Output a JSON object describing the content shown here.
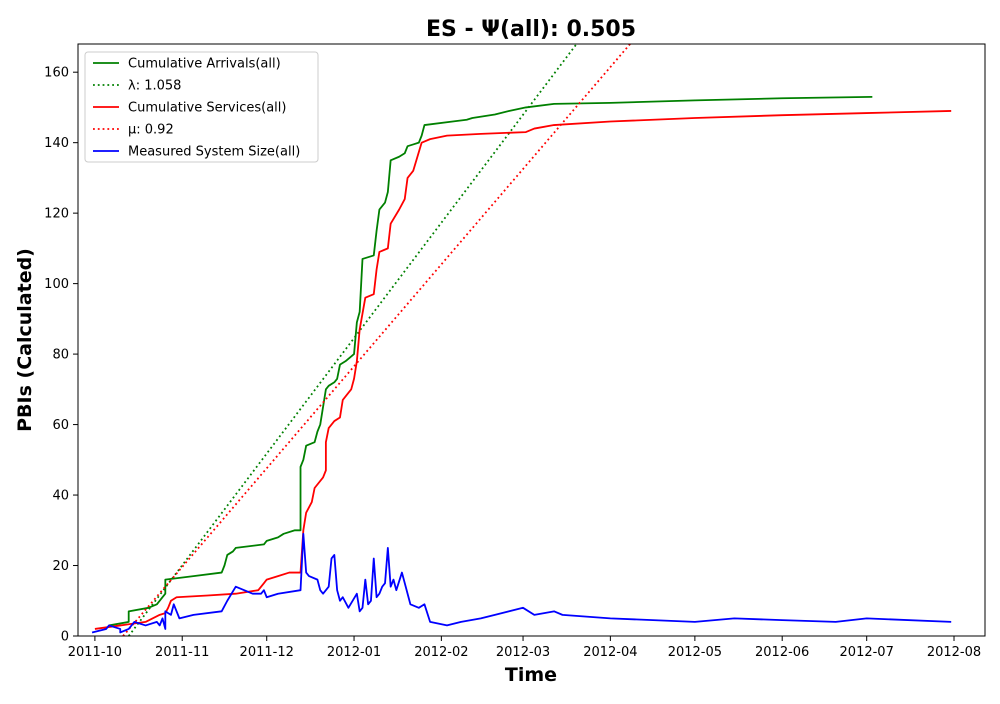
{
  "chart_data": {
    "type": "line",
    "title": "ES -  Ψ(all): 0.505",
    "xlabel": "Time",
    "ylabel": "PBIs (Calculated)",
    "xlim": [
      "2011-09-25",
      "2012-08-12"
    ],
    "ylim": [
      0,
      168
    ],
    "x_ticks": [
      "2011-10",
      "2011-11",
      "2011-12",
      "2012-01",
      "2012-02",
      "2012-03",
      "2012-04",
      "2012-05",
      "2012-06",
      "2012-07",
      "2012-08"
    ],
    "x_tick_dates": [
      "2011-10-01",
      "2011-11-01",
      "2011-12-01",
      "2012-01-01",
      "2012-02-01",
      "2012-03-01",
      "2012-04-01",
      "2012-05-01",
      "2012-06-01",
      "2012-07-01",
      "2012-08-01"
    ],
    "y_ticks": [
      0,
      20,
      40,
      60,
      80,
      100,
      120,
      140,
      160
    ],
    "grid": false,
    "legend_position": "top-left",
    "series": [
      {
        "name": "Cumulative Arrivals(all)",
        "color": "#008000",
        "style": "solid",
        "points": [
          [
            "2011-10-06",
            3
          ],
          [
            "2011-10-13",
            4
          ],
          [
            "2011-10-13",
            7
          ],
          [
            "2011-10-20",
            8
          ],
          [
            "2011-10-23",
            9
          ],
          [
            "2011-10-25",
            11
          ],
          [
            "2011-10-26",
            12
          ],
          [
            "2011-10-26",
            16
          ],
          [
            "2011-10-31",
            16.5
          ],
          [
            "2011-11-05",
            17
          ],
          [
            "2011-11-15",
            18
          ],
          [
            "2011-11-16",
            20
          ],
          [
            "2011-11-17",
            23
          ],
          [
            "2011-11-19",
            24
          ],
          [
            "2011-11-20",
            25
          ],
          [
            "2011-11-30",
            26
          ],
          [
            "2011-12-01",
            27
          ],
          [
            "2011-12-05",
            28
          ],
          [
            "2011-12-07",
            29
          ],
          [
            "2011-12-11",
            30
          ],
          [
            "2011-12-13",
            30
          ],
          [
            "2011-12-13",
            48
          ],
          [
            "2011-12-14",
            50
          ],
          [
            "2011-12-15",
            54
          ],
          [
            "2011-12-18",
            55
          ],
          [
            "2011-12-19",
            58
          ],
          [
            "2011-12-20",
            60
          ],
          [
            "2011-12-21",
            65
          ],
          [
            "2011-12-22",
            70
          ],
          [
            "2011-12-23",
            71
          ],
          [
            "2011-12-25",
            72
          ],
          [
            "2011-12-26",
            73
          ],
          [
            "2011-12-27",
            77
          ],
          [
            "2011-12-29",
            78
          ],
          [
            "2012-01-01",
            80
          ],
          [
            "2012-01-02",
            89
          ],
          [
            "2012-01-03",
            92
          ],
          [
            "2012-01-04",
            107
          ],
          [
            "2012-01-08",
            108
          ],
          [
            "2012-01-09",
            115
          ],
          [
            "2012-01-10",
            121
          ],
          [
            "2012-01-11",
            122
          ],
          [
            "2012-01-12",
            123
          ],
          [
            "2012-01-13",
            126
          ],
          [
            "2012-01-14",
            135
          ],
          [
            "2012-01-17",
            136
          ],
          [
            "2012-01-19",
            137
          ],
          [
            "2012-01-20",
            139
          ],
          [
            "2012-01-22",
            139.5
          ],
          [
            "2012-01-24",
            140
          ],
          [
            "2012-01-25",
            142
          ],
          [
            "2012-01-26",
            145
          ],
          [
            "2012-02-05",
            146
          ],
          [
            "2012-02-10",
            146.5
          ],
          [
            "2012-02-12",
            147
          ],
          [
            "2012-02-20",
            148
          ],
          [
            "2012-02-25",
            149
          ],
          [
            "2012-03-02",
            150
          ],
          [
            "2012-03-12",
            151
          ],
          [
            "2012-04-01",
            151.3
          ],
          [
            "2012-05-01",
            152
          ],
          [
            "2012-06-01",
            152.6
          ],
          [
            "2012-07-03",
            153
          ]
        ]
      },
      {
        "name": "λ: 1.058",
        "color": "#008000",
        "style": "dotted",
        "points": [
          [
            "2011-10-13",
            0
          ],
          [
            "2012-03-20",
            168
          ]
        ]
      },
      {
        "name": "Cumulative Services(all)",
        "color": "#ff0000",
        "style": "solid",
        "points": [
          [
            "2011-10-01",
            2
          ],
          [
            "2011-10-10",
            3
          ],
          [
            "2011-10-19",
            4
          ],
          [
            "2011-10-24",
            6
          ],
          [
            "2011-10-26",
            6.5
          ],
          [
            "2011-10-27",
            8
          ],
          [
            "2011-10-28",
            10
          ],
          [
            "2011-10-30",
            11
          ],
          [
            "2011-11-10",
            11.5
          ],
          [
            "2011-11-20",
            12
          ],
          [
            "2011-11-28",
            13
          ],
          [
            "2011-11-30",
            15
          ],
          [
            "2011-12-01",
            16
          ],
          [
            "2011-12-05",
            17
          ],
          [
            "2011-12-09",
            18
          ],
          [
            "2011-12-13",
            18
          ],
          [
            "2011-12-14",
            30
          ],
          [
            "2011-12-15",
            35
          ],
          [
            "2011-12-17",
            38
          ],
          [
            "2011-12-18",
            42
          ],
          [
            "2011-12-21",
            45
          ],
          [
            "2011-12-22",
            47
          ],
          [
            "2011-12-22",
            55
          ],
          [
            "2011-12-23",
            59
          ],
          [
            "2011-12-25",
            61
          ],
          [
            "2011-12-27",
            62
          ],
          [
            "2011-12-28",
            67
          ],
          [
            "2011-12-30",
            69
          ],
          [
            "2011-12-31",
            70
          ],
          [
            "2012-01-01",
            73
          ],
          [
            "2012-01-02",
            78
          ],
          [
            "2012-01-03",
            87
          ],
          [
            "2012-01-05",
            96
          ],
          [
            "2012-01-08",
            97
          ],
          [
            "2012-01-09",
            104
          ],
          [
            "2012-01-10",
            109
          ],
          [
            "2012-01-13",
            110
          ],
          [
            "2012-01-14",
            117
          ],
          [
            "2012-01-17",
            121
          ],
          [
            "2012-01-19",
            124
          ],
          [
            "2012-01-20",
            130
          ],
          [
            "2012-01-22",
            132
          ],
          [
            "2012-01-25",
            140
          ],
          [
            "2012-01-28",
            141
          ],
          [
            "2012-02-03",
            142
          ],
          [
            "2012-02-15",
            142.5
          ],
          [
            "2012-03-02",
            143
          ],
          [
            "2012-03-05",
            144
          ],
          [
            "2012-03-12",
            145
          ],
          [
            "2012-04-01",
            146
          ],
          [
            "2012-05-01",
            147
          ],
          [
            "2012-06-01",
            147.8
          ],
          [
            "2012-07-01",
            148.4
          ],
          [
            "2012-07-31",
            149
          ]
        ]
      },
      {
        "name": "μ: 0.92",
        "color": "#ff0000",
        "style": "dotted",
        "points": [
          [
            "2011-10-11",
            0
          ],
          [
            "2012-04-08",
            168
          ]
        ]
      },
      {
        "name": "Measured System Size(all)",
        "color": "#0000ff",
        "style": "solid",
        "points": [
          [
            "2011-09-30",
            1
          ],
          [
            "2011-10-05",
            2
          ],
          [
            "2011-10-06",
            3
          ],
          [
            "2011-10-10",
            2
          ],
          [
            "2011-10-10",
            1
          ],
          [
            "2011-10-13",
            2
          ],
          [
            "2011-10-15",
            4
          ],
          [
            "2011-10-19",
            3
          ],
          [
            "2011-10-23",
            4
          ],
          [
            "2011-10-24",
            3
          ],
          [
            "2011-10-25",
            5
          ],
          [
            "2011-10-26",
            2
          ],
          [
            "2011-10-26",
            7
          ],
          [
            "2011-10-28",
            6
          ],
          [
            "2011-10-29",
            9
          ],
          [
            "2011-10-31",
            5
          ],
          [
            "2011-11-05",
            6
          ],
          [
            "2011-11-15",
            7
          ],
          [
            "2011-11-17",
            10
          ],
          [
            "2011-11-20",
            14
          ],
          [
            "2011-11-26",
            12
          ],
          [
            "2011-11-29",
            12
          ],
          [
            "2011-11-30",
            13
          ],
          [
            "2011-12-01",
            11
          ],
          [
            "2011-12-05",
            12
          ],
          [
            "2011-12-13",
            13
          ],
          [
            "2011-12-14",
            29
          ],
          [
            "2011-12-15",
            18
          ],
          [
            "2011-12-16",
            17
          ],
          [
            "2011-12-19",
            16
          ],
          [
            "2011-12-20",
            13
          ],
          [
            "2011-12-21",
            12
          ],
          [
            "2011-12-23",
            14
          ],
          [
            "2011-12-24",
            22
          ],
          [
            "2011-12-25",
            23
          ],
          [
            "2011-12-26",
            13
          ],
          [
            "2011-12-27",
            10
          ],
          [
            "2011-12-28",
            11
          ],
          [
            "2011-12-30",
            8
          ],
          [
            "2012-01-02",
            12
          ],
          [
            "2012-01-03",
            7
          ],
          [
            "2012-01-04",
            8
          ],
          [
            "2012-01-05",
            16
          ],
          [
            "2012-01-06",
            9
          ],
          [
            "2012-01-07",
            10
          ],
          [
            "2012-01-08",
            22
          ],
          [
            "2012-01-09",
            11
          ],
          [
            "2012-01-10",
            12
          ],
          [
            "2012-01-11",
            14
          ],
          [
            "2012-01-12",
            15
          ],
          [
            "2012-01-13",
            25
          ],
          [
            "2012-01-14",
            14
          ],
          [
            "2012-01-15",
            16
          ],
          [
            "2012-01-16",
            13
          ],
          [
            "2012-01-18",
            18
          ],
          [
            "2012-01-19",
            15
          ],
          [
            "2012-01-21",
            9
          ],
          [
            "2012-01-24",
            8
          ],
          [
            "2012-01-26",
            9
          ],
          [
            "2012-01-28",
            4
          ],
          [
            "2012-02-03",
            3
          ],
          [
            "2012-02-08",
            4
          ],
          [
            "2012-02-15",
            5
          ],
          [
            "2012-02-20",
            6
          ],
          [
            "2012-03-01",
            8
          ],
          [
            "2012-03-05",
            6
          ],
          [
            "2012-03-12",
            7
          ],
          [
            "2012-03-15",
            6
          ],
          [
            "2012-04-01",
            5
          ],
          [
            "2012-05-01",
            4
          ],
          [
            "2012-05-15",
            5
          ],
          [
            "2012-06-01",
            4.5
          ],
          [
            "2012-06-20",
            4
          ],
          [
            "2012-07-01",
            5
          ],
          [
            "2012-07-31",
            4
          ]
        ]
      }
    ]
  }
}
